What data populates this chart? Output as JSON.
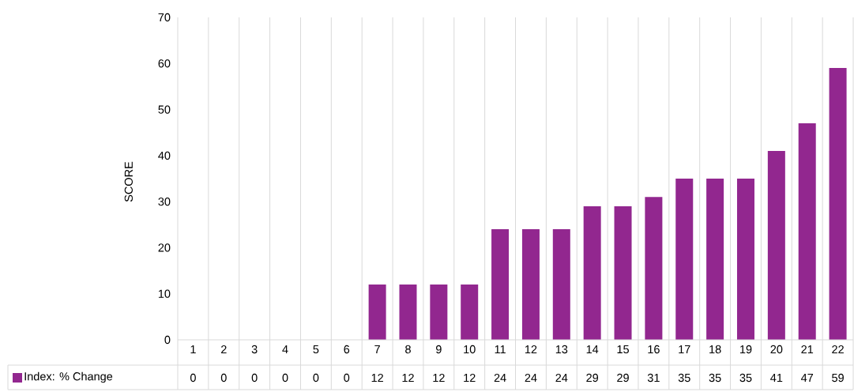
{
  "chart_data": {
    "type": "bar",
    "ylabel": "SCORE",
    "categories": [
      "1",
      "2",
      "3",
      "4",
      "5",
      "6",
      "7",
      "8",
      "9",
      "10",
      "11",
      "12",
      "13",
      "14",
      "15",
      "16",
      "17",
      "18",
      "19",
      "20",
      "21",
      "22"
    ],
    "series": [
      {
        "name": "Index: % Change",
        "color": "#92278f",
        "values": [
          0,
          0,
          0,
          0,
          0,
          0,
          12,
          12,
          12,
          12,
          24,
          24,
          24,
          29,
          29,
          31,
          35,
          35,
          35,
          41,
          47,
          59
        ]
      }
    ],
    "ylim": [
      0,
      70
    ],
    "yticks": [
      0,
      10,
      20,
      30,
      40,
      50,
      60,
      70
    ],
    "grid": "x",
    "legend": "bottom",
    "data_labels": true
  }
}
